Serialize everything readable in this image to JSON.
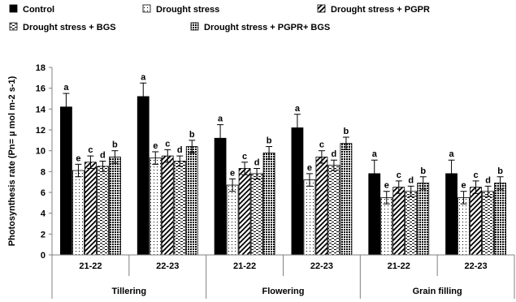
{
  "chart_data": {
    "type": "bar",
    "title": "",
    "xlabel": "",
    "ylabel": "Photosynthesis rate (Pn= µ mol m-2 s-1)",
    "ylim": [
      0,
      18
    ],
    "yticks": [
      0,
      2,
      4,
      6,
      8,
      10,
      12,
      14,
      16,
      18
    ],
    "grid": false,
    "legend_position": "top",
    "groups": [
      "Tillering",
      "Flowering",
      "Grain filling"
    ],
    "categories": [
      "21-22",
      "22-23",
      "21-22",
      "22-23",
      "21-22",
      "22-23"
    ],
    "category_group": [
      0,
      0,
      1,
      1,
      2,
      2
    ],
    "series": [
      {
        "name": "Control",
        "pattern": "solid",
        "values": [
          14.2,
          15.2,
          11.2,
          12.2,
          7.8,
          7.8
        ],
        "errors": [
          1.3,
          1.3,
          1.3,
          1.3,
          1.3,
          1.3
        ],
        "letters": [
          "a",
          "a",
          "a",
          "a",
          "a",
          "a"
        ]
      },
      {
        "name": "Drought stress",
        "pattern": "dots",
        "values": [
          8.1,
          9.3,
          6.7,
          7.2,
          5.5,
          5.5
        ],
        "errors": [
          0.6,
          0.6,
          0.6,
          0.6,
          0.6,
          0.6
        ],
        "letters": [
          "e",
          "e",
          "e",
          "e",
          "e",
          "e"
        ]
      },
      {
        "name": "Drought stress + PGPR",
        "pattern": "diagonal",
        "values": [
          8.9,
          9.5,
          8.3,
          9.4,
          6.5,
          6.5
        ],
        "errors": [
          0.6,
          0.6,
          0.6,
          0.6,
          0.6,
          0.6
        ],
        "letters": [
          "c",
          "c",
          "c",
          "c",
          "c",
          "c"
        ]
      },
      {
        "name": "Drought stress + BGS",
        "pattern": "dash",
        "values": [
          8.5,
          9.0,
          7.8,
          8.6,
          6.1,
          6.1
        ],
        "errors": [
          0.5,
          0.5,
          0.5,
          0.5,
          0.5,
          0.5
        ],
        "letters": [
          "d",
          "d",
          "d",
          "d",
          "d",
          "d"
        ]
      },
      {
        "name": "Drought stress + PGPR+ BGS",
        "pattern": "grid",
        "values": [
          9.4,
          10.4,
          9.8,
          10.7,
          6.9,
          6.9
        ],
        "errors": [
          0.6,
          0.6,
          0.6,
          0.6,
          0.6,
          0.6
        ],
        "letters": [
          "b",
          "b",
          "b",
          "b",
          "b",
          "b"
        ]
      }
    ]
  }
}
